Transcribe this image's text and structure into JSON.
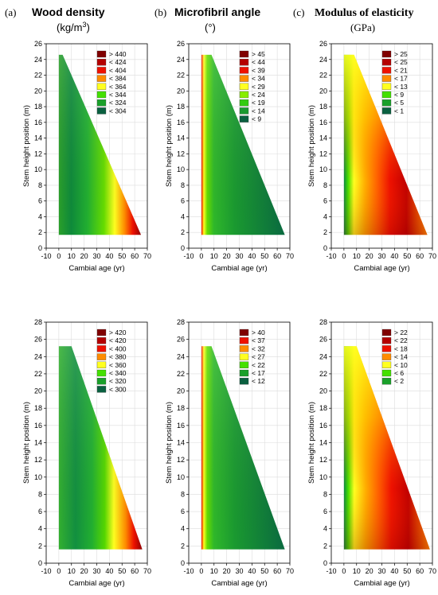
{
  "headers": [
    {
      "letter": "(a)",
      "title": "Wood density",
      "unit_base": "(kg/m",
      "unit_sup": "3",
      "unit_end": ")"
    },
    {
      "letter": "(b)",
      "title": "Microfibril angle",
      "unit_base": "(°)",
      "unit_sup": "",
      "unit_end": ""
    },
    {
      "letter": "(c)",
      "title": "Modulus of elasticity",
      "unit_base": "(GPa)",
      "unit_sup": "",
      "unit_end": ""
    }
  ],
  "chart_data": [
    {
      "type": "heatmap",
      "row": 0,
      "col": 0,
      "xlabel": "Cambial age (yr)",
      "ylabel": "Stem height position (m)",
      "xlim": [
        -10,
        70
      ],
      "ylim": [
        0,
        26
      ],
      "xticks": [
        -10,
        0,
        10,
        20,
        30,
        40,
        50,
        60,
        70
      ],
      "yticks": [
        0,
        2,
        4,
        6,
        8,
        10,
        12,
        14,
        16,
        18,
        20,
        22,
        24,
        26
      ],
      "top_height": 24.6,
      "base_height": 1.7,
      "base_max_age": 65,
      "top_max_age": 3,
      "legend": [
        {
          "label": "> 440",
          "color": "#800000"
        },
        {
          "label": "< 424",
          "color": "#b40000"
        },
        {
          "label": "< 404",
          "color": "#ee1100"
        },
        {
          "label": "< 384",
          "color": "#ff8c00"
        },
        {
          "label": "< 364",
          "color": "#ffff20"
        },
        {
          "label": "< 344",
          "color": "#44e000"
        },
        {
          "label": "< 324",
          "color": "#1aa02a"
        },
        {
          "label": "< 304",
          "color": "#0a6040"
        }
      ],
      "gradient": "radial-wd"
    },
    {
      "type": "heatmap",
      "row": 0,
      "col": 1,
      "xlabel": "Cambial age (yr)",
      "ylabel": "Stem height position (m)",
      "xlim": [
        -10,
        70
      ],
      "ylim": [
        0,
        26
      ],
      "xticks": [
        -10,
        0,
        10,
        20,
        30,
        40,
        50,
        60,
        70
      ],
      "yticks": [
        0,
        2,
        4,
        6,
        8,
        10,
        12,
        14,
        16,
        18,
        20,
        22,
        24,
        26
      ],
      "top_height": 24.6,
      "base_height": 1.7,
      "base_max_age": 66,
      "top_max_age": 8,
      "legend": [
        {
          "label": "> 45",
          "color": "#800000"
        },
        {
          "label": "< 44",
          "color": "#b40000"
        },
        {
          "label": "< 39",
          "color": "#ee1100"
        },
        {
          "label": "< 34",
          "color": "#ff8c00"
        },
        {
          "label": "< 29",
          "color": "#ffff20"
        },
        {
          "label": "< 24",
          "color": "#88ee00"
        },
        {
          "label": "< 19",
          "color": "#33cc11"
        },
        {
          "label": "< 14",
          "color": "#1a9a30"
        },
        {
          "label": "< 9",
          "color": "#0a6040"
        }
      ],
      "gradient": "mfa"
    },
    {
      "type": "heatmap",
      "row": 0,
      "col": 2,
      "xlabel": "Cambial age (yr)",
      "ylabel": "Stem height position (m)",
      "xlim": [
        -10,
        70
      ],
      "ylim": [
        0,
        26
      ],
      "xticks": [
        -10,
        0,
        10,
        20,
        30,
        40,
        50,
        60,
        70
      ],
      "yticks": [
        0,
        2,
        4,
        6,
        8,
        10,
        12,
        14,
        16,
        18,
        20,
        22,
        24,
        26
      ],
      "top_height": 24.6,
      "base_height": 1.7,
      "base_max_age": 66,
      "top_max_age": 8,
      "legend": [
        {
          "label": "> 25",
          "color": "#800000"
        },
        {
          "label": "< 25",
          "color": "#b40000"
        },
        {
          "label": "< 21",
          "color": "#ee1100"
        },
        {
          "label": "< 17",
          "color": "#ff8c00"
        },
        {
          "label": "< 13",
          "color": "#ffff20"
        },
        {
          "label": "< 9",
          "color": "#44e000"
        },
        {
          "label": "< 5",
          "color": "#1aa02a"
        },
        {
          "label": "< 1",
          "color": "#0a6040"
        }
      ],
      "gradient": "moe"
    },
    {
      "type": "heatmap",
      "row": 1,
      "col": 0,
      "xlabel": "Cambial age (yr)",
      "ylabel": "Stem height position (m)",
      "xlim": [
        -10,
        70
      ],
      "ylim": [
        0,
        28
      ],
      "xticks": [
        -10,
        0,
        10,
        20,
        30,
        40,
        50,
        60,
        70
      ],
      "yticks": [
        0,
        2,
        4,
        6,
        8,
        10,
        12,
        14,
        16,
        18,
        20,
        22,
        24,
        26,
        28
      ],
      "top_height": 25.2,
      "base_height": 1.6,
      "base_max_age": 66,
      "top_max_age": 10,
      "legend": [
        {
          "label": "> 420",
          "color": "#800000"
        },
        {
          "label": "< 420",
          "color": "#b40000"
        },
        {
          "label": "< 400",
          "color": "#ee1100"
        },
        {
          "label": "< 380",
          "color": "#ff8c00"
        },
        {
          "label": "< 360",
          "color": "#ffff20"
        },
        {
          "label": "< 340",
          "color": "#44e000"
        },
        {
          "label": "< 320",
          "color": "#1aa02a"
        },
        {
          "label": "< 300",
          "color": "#0a6040"
        }
      ],
      "gradient": "radial-wd2"
    },
    {
      "type": "heatmap",
      "row": 1,
      "col": 1,
      "xlabel": "Cambial age (yr)",
      "ylabel": "Stem height position (m)",
      "xlim": [
        -10,
        70
      ],
      "ylim": [
        0,
        28
      ],
      "xticks": [
        -10,
        0,
        10,
        20,
        30,
        40,
        50,
        60,
        70
      ],
      "yticks": [
        0,
        2,
        4,
        6,
        8,
        10,
        12,
        14,
        16,
        18,
        20,
        22,
        24,
        26,
        28
      ],
      "top_height": 25.2,
      "base_height": 1.6,
      "base_max_age": 66,
      "top_max_age": 8,
      "legend": [
        {
          "label": "> 40",
          "color": "#800000"
        },
        {
          "label": "< 37",
          "color": "#ee1100"
        },
        {
          "label": "< 32",
          "color": "#ff8c00"
        },
        {
          "label": "< 27",
          "color": "#ffff20"
        },
        {
          "label": "< 22",
          "color": "#44e000"
        },
        {
          "label": "< 17",
          "color": "#1aa02a"
        },
        {
          "label": "< 12",
          "color": "#0a6040"
        }
      ],
      "gradient": "mfa"
    },
    {
      "type": "heatmap",
      "row": 1,
      "col": 2,
      "xlabel": "Cambial age (yr)",
      "ylabel": "Stem height position (m)",
      "xlim": [
        -10,
        70
      ],
      "ylim": [
        0,
        28
      ],
      "xticks": [
        -10,
        0,
        10,
        20,
        30,
        40,
        50,
        60,
        70
      ],
      "yticks": [
        0,
        2,
        4,
        6,
        8,
        10,
        12,
        14,
        16,
        18,
        20,
        22,
        24,
        26,
        28
      ],
      "top_height": 25.2,
      "base_height": 1.6,
      "base_max_age": 68,
      "top_max_age": 10,
      "legend": [
        {
          "label": "> 22",
          "color": "#800000"
        },
        {
          "label": "< 22",
          "color": "#b40000"
        },
        {
          "label": "< 18",
          "color": "#ee1100"
        },
        {
          "label": "< 14",
          "color": "#ff8c00"
        },
        {
          "label": "< 10",
          "color": "#ffff20"
        },
        {
          "label": "< 6",
          "color": "#44e000"
        },
        {
          "label": "< 2",
          "color": "#1aa02a"
        }
      ],
      "gradient": "moe"
    }
  ]
}
